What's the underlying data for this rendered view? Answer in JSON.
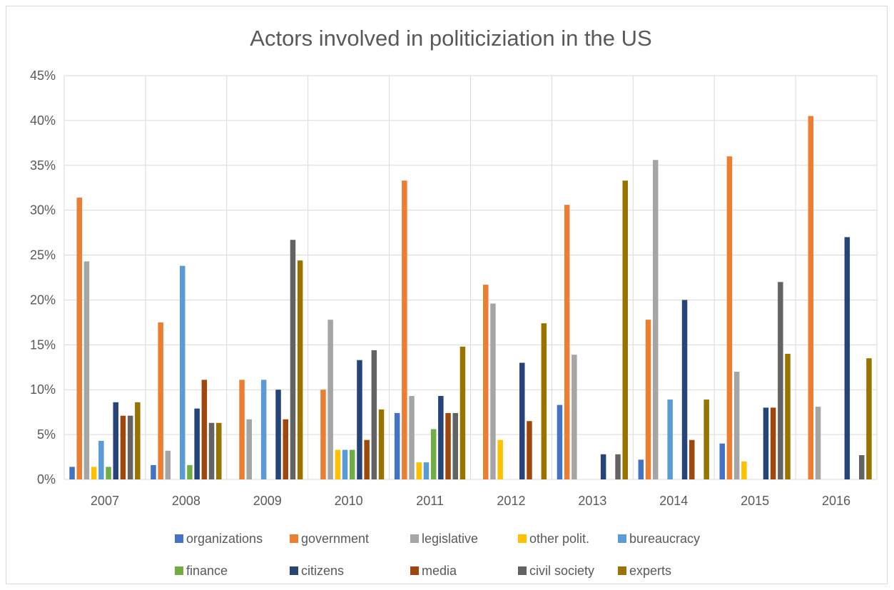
{
  "chart_data": {
    "type": "bar",
    "title": "Actors involved in politiciziation in the US",
    "xlabel": "",
    "ylabel": "",
    "ylim": [
      0,
      0.45
    ],
    "yticks": [
      "0%",
      "5%",
      "10%",
      "15%",
      "20%",
      "25%",
      "30%",
      "35%",
      "40%",
      "45%"
    ],
    "grid": true,
    "legend_position": "bottom",
    "categories": [
      "2007",
      "2008",
      "2009",
      "2010",
      "2011",
      "2012",
      "2013",
      "2014",
      "2015",
      "2016"
    ],
    "series": [
      {
        "name": "organizations",
        "color": "#4472c4",
        "values": [
          0.014,
          0.016,
          0,
          0,
          0.074,
          0,
          0.083,
          0.022,
          0.04,
          0
        ]
      },
      {
        "name": "government",
        "color": "#ed7d31",
        "values": [
          0.314,
          0.175,
          0.111,
          0.1,
          0.333,
          0.217,
          0.306,
          0.178,
          0.36,
          0.405
        ]
      },
      {
        "name": "legislative",
        "color": "#a5a5a5",
        "values": [
          0.243,
          0.032,
          0.067,
          0.178,
          0.093,
          0.196,
          0.139,
          0.356,
          0.12,
          0.081
        ]
      },
      {
        "name": "other polit.",
        "color": "#ffc000",
        "values": [
          0.014,
          0,
          0,
          0.033,
          0.019,
          0.044,
          0,
          0,
          0.02,
          0
        ]
      },
      {
        "name": "bureaucracy",
        "color": "#5b9bd5",
        "values": [
          0.043,
          0.238,
          0.111,
          0.033,
          0.019,
          0,
          0,
          0.089,
          0,
          0
        ]
      },
      {
        "name": "finance",
        "color": "#70ad47",
        "values": [
          0.014,
          0.016,
          0,
          0.033,
          0.056,
          0,
          0,
          0,
          0,
          0
        ]
      },
      {
        "name": "citizens",
        "color": "#264478",
        "values": [
          0.086,
          0.079,
          0.1,
          0.133,
          0.093,
          0.13,
          0.028,
          0.2,
          0.08,
          0.27
        ]
      },
      {
        "name": "media",
        "color": "#9e480e",
        "values": [
          0.071,
          0.111,
          0.067,
          0.044,
          0.074,
          0.065,
          0,
          0.044,
          0.08,
          0
        ]
      },
      {
        "name": "civil society",
        "color": "#636363",
        "values": [
          0.071,
          0.063,
          0.267,
          0.144,
          0.074,
          0,
          0.028,
          0,
          0.22,
          0.027
        ]
      },
      {
        "name": "experts",
        "color": "#997300",
        "values": [
          0.086,
          0.063,
          0.244,
          0.078,
          0.148,
          0.174,
          0.333,
          0.089,
          0.14,
          0.135
        ]
      }
    ]
  }
}
